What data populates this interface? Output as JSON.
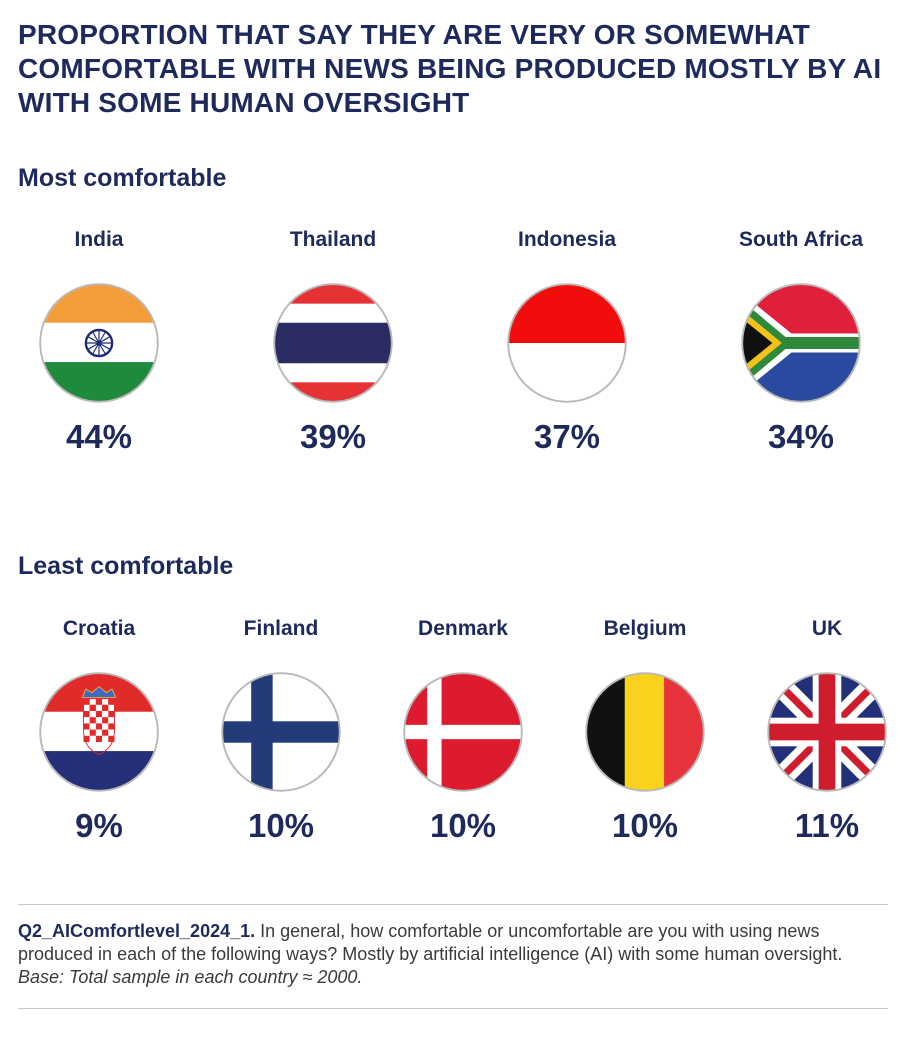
{
  "title": "PROPORTION THAT SAY THEY ARE VERY OR SOMEWHAT COMFORTABLE WITH NEWS BEING PRODUCED MOSTLY BY AI WITH SOME HUMAN OVERSIGHT",
  "sections": {
    "most": {
      "heading": "Most comfortable"
    },
    "least": {
      "heading": "Least comfortable"
    }
  },
  "chart_data": [
    {
      "type": "table",
      "title": "Most comfortable",
      "categories": [
        "India",
        "Thailand",
        "Indonesia",
        "South Africa"
      ],
      "values": [
        44,
        39,
        37,
        34
      ],
      "labels": [
        "44%",
        "39%",
        "37%",
        "34%"
      ],
      "flag_icons": [
        "india-flag-icon",
        "thailand-flag-icon",
        "indonesia-flag-icon",
        "south-africa-flag-icon"
      ]
    },
    {
      "type": "table",
      "title": "Least comfortable",
      "categories": [
        "Croatia",
        "Finland",
        "Denmark",
        "Belgium",
        "UK"
      ],
      "values": [
        9,
        10,
        10,
        10,
        11
      ],
      "labels": [
        "9%",
        "10%",
        "10%",
        "10%",
        "11%"
      ],
      "flag_icons": [
        "croatia-flag-icon",
        "finland-flag-icon",
        "denmark-flag-icon",
        "belgium-flag-icon",
        "uk-flag-icon"
      ]
    }
  ],
  "footnote": {
    "question_id": "Q2_AIComfortlevel_2024_1.",
    "question_text": "In general, how comfortable or uncomfortable are you with using news produced in each of the following ways? Mostly by artificial intelligence (AI) with some human oversight.",
    "base": "Base: Total sample in each country ≈ 2000."
  },
  "colors": {
    "text_navy": "#1f2a5c",
    "rule_gray": "#c9c9c9"
  }
}
